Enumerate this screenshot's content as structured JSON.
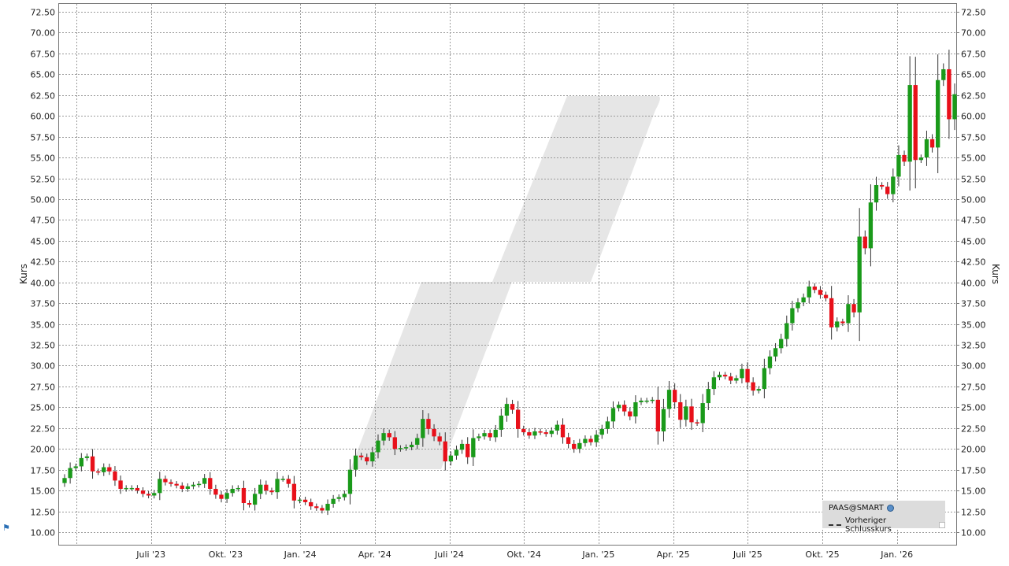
{
  "chart_data": {
    "type": "candlestick",
    "ylabel_left": "Kurs",
    "ylabel_right": "Kurs",
    "ylim": [
      10,
      72.5
    ],
    "y_ticks": [
      "10.00",
      "12.50",
      "15.00",
      "17.50",
      "20.00",
      "22.50",
      "25.00",
      "27.50",
      "30.00",
      "32.50",
      "35.00",
      "37.50",
      "40.00",
      "42.50",
      "45.00",
      "47.50",
      "50.00",
      "52.50",
      "55.00",
      "57.50",
      "60.00",
      "62.50",
      "65.00",
      "67.50",
      "70.00",
      "72.50"
    ],
    "x_ticks": [
      "Juli '23",
      "Okt. '23",
      "Jan. '24",
      "Apr. '24",
      "Juli '24",
      "Okt. '24",
      "Jan. '25",
      "Apr. '25",
      "Juli '25",
      "Okt. '25",
      "Jan. '26"
    ],
    "grid": true,
    "legend_position": "bottom-right",
    "up_color": "#1a9a1a",
    "down_color": "#e8101a",
    "close": [
      16.5,
      17.7,
      17.9,
      18.9,
      19.1,
      17.3,
      17.2,
      17.8,
      17.3,
      16.2,
      15.2,
      15.3,
      15.3,
      15.0,
      14.6,
      14.4,
      14.7,
      16.4,
      16.0,
      15.8,
      15.6,
      15.2,
      15.5,
      15.7,
      15.8,
      16.5,
      15.2,
      14.5,
      14.0,
      14.7,
      15.2,
      15.3,
      13.5,
      13.3,
      14.6,
      15.7,
      15.0,
      14.8,
      16.4,
      16.4,
      15.8,
      13.8,
      13.9,
      13.6,
      13.1,
      12.9,
      12.6,
      13.4,
      14.0,
      14.2,
      14.6,
      17.5,
      19.2,
      19.0,
      18.5,
      19.6,
      21.0,
      21.9,
      21.4,
      20.0,
      20.1,
      20.2,
      20.5,
      21.3,
      23.6,
      22.4,
      21.5,
      20.9,
      18.5,
      19.2,
      19.9,
      20.6,
      19.0,
      21.3,
      21.5,
      21.9,
      21.4,
      22.3,
      24.0,
      25.4,
      24.7,
      22.4,
      22.0,
      21.6,
      22.1,
      22.0,
      21.8,
      22.2,
      22.9,
      21.4,
      20.6,
      20.0,
      20.7,
      21.2,
      20.8,
      21.7,
      22.4,
      23.3,
      24.9,
      25.3,
      24.5,
      23.9,
      25.6,
      25.8,
      25.8,
      25.9,
      22.1,
      24.8,
      27.1,
      25.6,
      23.5,
      25.1,
      23.2,
      23.1,
      25.5,
      27.2,
      28.6,
      28.9,
      28.7,
      28.2,
      28.5,
      29.6,
      28.0,
      27.0,
      27.2,
      29.7,
      31.1,
      32.1,
      33.2,
      35.1,
      36.9,
      37.6,
      38.2,
      39.5,
      39.1,
      38.5,
      38.1,
      34.6,
      35.3,
      35.1,
      37.4,
      36.4,
      45.5,
      44.1,
      49.6,
      51.7,
      51.5,
      50.6,
      52.7,
      55.3,
      54.5,
      63.7,
      54.7,
      55.0,
      57.2,
      56.2,
      64.3,
      65.6,
      59.6,
      62.6
    ]
  },
  "legend": {
    "symbol": "PAAS@SMART",
    "prev_close_label": "Vorheriger Schlusskurs"
  }
}
